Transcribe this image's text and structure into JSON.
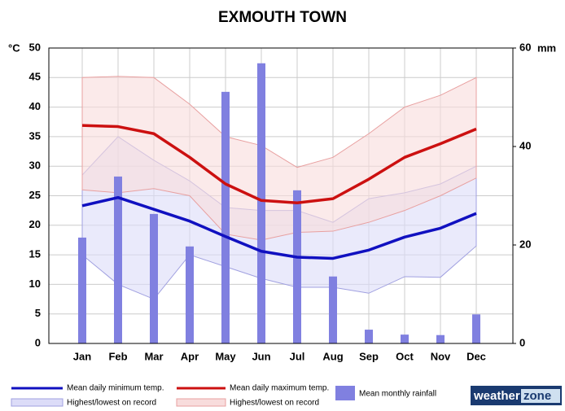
{
  "chart_data": {
    "type": "climate",
    "title": "EXMOUTH TOWN",
    "y_unit": "°C",
    "y2_unit": "mm",
    "categories": [
      "Jan",
      "Feb",
      "Mar",
      "Apr",
      "May",
      "Jun",
      "Jul",
      "Aug",
      "Sep",
      "Oct",
      "Nov",
      "Dec"
    ],
    "ylim": [
      0,
      50
    ],
    "yticks": [
      0,
      5,
      10,
      15,
      20,
      25,
      30,
      35,
      40,
      45,
      50
    ],
    "y2lim": [
      0,
      60
    ],
    "y2ticks": [
      0,
      20,
      40,
      60
    ],
    "grid": true,
    "bands": [
      {
        "name": "Highest/lowest on record",
        "color": "#dcdcf8",
        "edge": "#a0a0e0",
        "high": [
          28.5,
          35,
          31,
          27.5,
          23,
          22.5,
          22.5,
          20.5,
          24.5,
          25.5,
          27,
          30
        ],
        "low": [
          15,
          10,
          7.5,
          15,
          13,
          11,
          9.5,
          9.5,
          8.5,
          11.3,
          11.2,
          16.5
        ]
      },
      {
        "name": "Highest/lowest on record",
        "color": "#f8dcdc",
        "edge": "#e8a0a0",
        "high": [
          45,
          45.2,
          45,
          40.5,
          35,
          33.5,
          29.8,
          31.5,
          35.5,
          40,
          42,
          45
        ],
        "low": [
          26,
          25.5,
          26.2,
          25,
          18.5,
          17.5,
          18.8,
          19,
          20.5,
          22.5,
          25,
          28
        ]
      }
    ],
    "series": [
      {
        "name": "Mean monthly rainfall",
        "type": "bar",
        "axis": "y2",
        "color": "#8080e0",
        "values": [
          21.5,
          33.9,
          26.3,
          19.7,
          51.1,
          56.9,
          31.1,
          13.6,
          2.8,
          1.8,
          1.7,
          5.9
        ]
      },
      {
        "name": "Mean daily minimum temp.",
        "type": "line",
        "color": "#1010c0",
        "values": [
          23.3,
          24.7,
          22.7,
          20.7,
          18.1,
          15.6,
          14.6,
          14.4,
          15.8,
          18.0,
          19.5,
          22.0
        ]
      },
      {
        "name": "Mean daily maximum temp.",
        "type": "line",
        "color": "#cc1010",
        "values": [
          36.9,
          36.7,
          35.5,
          31.5,
          27.0,
          24.2,
          23.8,
          24.5,
          27.8,
          31.5,
          33.8,
          36.3
        ]
      }
    ],
    "logo": [
      "weather",
      "zone"
    ]
  }
}
